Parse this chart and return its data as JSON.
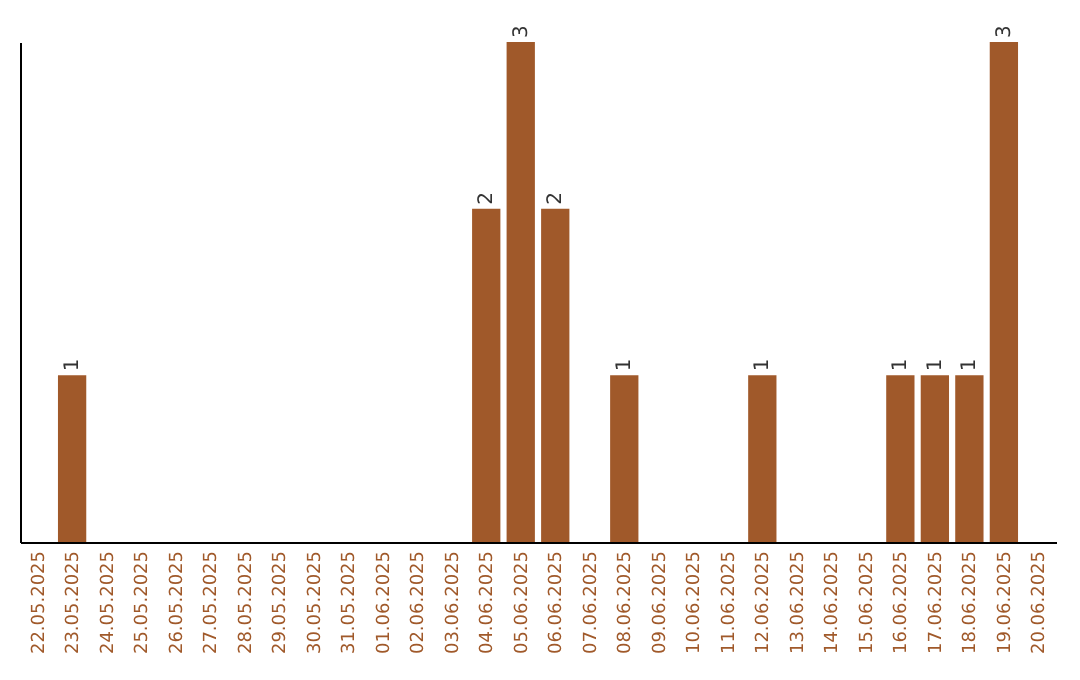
{
  "chart_data": {
    "type": "bar",
    "categories": [
      "22.05.2025",
      "23.05.2025",
      "24.05.2025",
      "25.05.2025",
      "26.05.2025",
      "27.05.2025",
      "28.05.2025",
      "29.05.2025",
      "30.05.2025",
      "31.05.2025",
      "01.06.2025",
      "02.06.2025",
      "03.06.2025",
      "04.06.2025",
      "05.06.2025",
      "06.06.2025",
      "07.06.2025",
      "08.06.2025",
      "09.06.2025",
      "10.06.2025",
      "11.06.2025",
      "12.06.2025",
      "13.06.2025",
      "14.06.2025",
      "15.06.2025",
      "16.06.2025",
      "17.06.2025",
      "18.06.2025",
      "19.06.2025",
      "20.06.2025"
    ],
    "values": [
      null,
      1,
      null,
      null,
      null,
      null,
      null,
      null,
      null,
      null,
      null,
      null,
      null,
      2,
      3,
      2,
      null,
      1,
      null,
      null,
      null,
      1,
      null,
      null,
      null,
      1,
      1,
      1,
      3,
      null
    ],
    "color": "#a0592a",
    "ylim": [
      0,
      3
    ],
    "data_labels": true,
    "tick_labels": "x"
  }
}
